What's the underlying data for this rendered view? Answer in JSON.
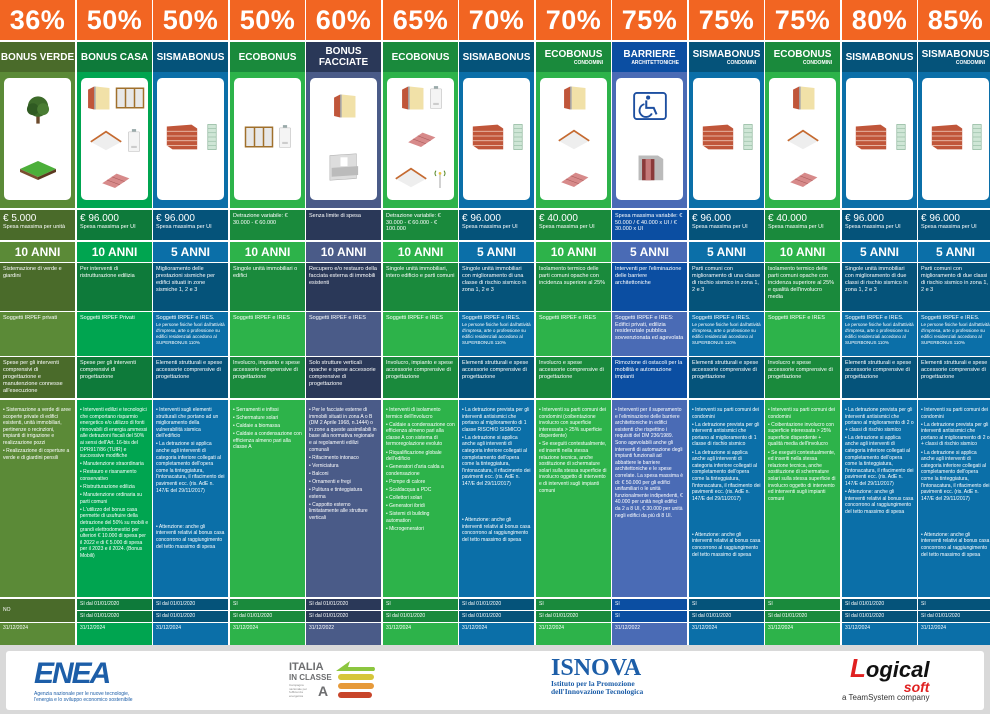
{
  "row_labels": {
    "cessione": "NO",
    "scadenza_label": ""
  },
  "columns": [
    {
      "percent": "36%",
      "title": "BONUS VERDE",
      "subtitle": "",
      "icons": [
        "tree-icon",
        "lawn-icon"
      ],
      "spesa_big": "€ 5.000",
      "spesa_small": "Spesa massima per unità",
      "anni": "10 ANNI",
      "desc": "Sistemazione di verde e giardini",
      "soggetti": "Soggetti IRPEF privati",
      "soggetti_note": "",
      "spese": "Spese per gli interventi comprensivi di progettazione e manutenzione connesse all'esecuzione",
      "interventi": [
        "Sistemazione a verde di aree scoperte private di edifici esistenti, unità immobiliari, pertinenze o recinzioni, impianti di irrigazione e realizzazione pozzi",
        "Realizzazione di coperture a verde e di giardini pensili"
      ],
      "interventi_extra": "",
      "cessione": "NO",
      "sconto": "",
      "scadenza": "31/12/2024"
    },
    {
      "percent": "50%",
      "title": "BONUS CASA",
      "subtitle": "",
      "icons": [
        "insulated-wall-icon",
        "window-icon",
        "roof-insulation-icon",
        "boiler-icon",
        "roof-icon"
      ],
      "spesa_big": "€ 96.000",
      "spesa_small": "Spesa massima per UI",
      "anni": "10 ANNI",
      "desc": "Per interventi di ristrutturazione edilizia",
      "soggetti": "Soggetti IRPEF Privati",
      "soggetti_note": "",
      "spese": "Spese per gli interventi comprensivi di progettazione",
      "interventi": [
        "Interventi edilizi e tecnologici che comportano risparmio energetico e/o utilizzo di fonti rinnovabili di energia ammessi alle detrazioni fiscali del 50% ai sensi dell'Art. 16-bis del DPR917/86 (TUIR) e successive modifiche",
        "Manutenzione straordinaria",
        "Restauro e risanamento conservativo",
        "Ristrutturazione edilizia",
        "Manutenzione ordinaria su parti comuni",
        "L'utilizzo del bonus casa permette di usufruire della detrazione del 50% su mobili e grandi elettrodomestici per ulteriori € 10.000 di spesa per il 2022 e di € 5.000 di spesa per il 2023 e il 2024. (Bonus Mobili)"
      ],
      "interventi_extra": "",
      "cessione": "SI dal 01/01/2020",
      "sconto": "SI dal 01/01/2020",
      "scadenza": "31/12/2024"
    },
    {
      "percent": "50%",
      "title": "SISMABONUS",
      "subtitle": "",
      "icons": [
        "brick-wall-icon",
        "rebar-column-icon"
      ],
      "spesa_big": "€ 96.000",
      "spesa_small": "Spesa massima per UI",
      "anni": "5 ANNI",
      "desc": "Miglioramento delle prestazioni sismiche per edifici situati in zone sismiche 1, 2 e 3",
      "soggetti": "Soggetti IRPEF e IRES.",
      "soggetti_note": "Le persone fisiche fuori dall'attività d'impresa, arte o professione su edifici residenziali accedono al SUPERBONUS 110%",
      "spese": "Elementi strutturali e spese accessorie comprensive di progettazione",
      "interventi": [
        "Interventi sugli elementi strutturali che portano ad un miglioramento della vulnerabilità sismica dell'edificio",
        "La detrazione si applica anche agli interventi di categoria inferiore collegati al completamento dell'opera come la tinteggiatura, l'intonacatura, il rifacimento dei pavimenti ecc. (ris. AdE n. 147/E del 29/11/2017)"
      ],
      "interventi_extra": "Attenzione: anche gli interventi relativi al bonus casa concorrono al raggiungimento del tetto massimo di spesa",
      "cessione": "SI dal 01/01/2020",
      "sconto": "SI dal 01/01/2020",
      "scadenza": "31/12/2024"
    },
    {
      "percent": "50%",
      "title": "ECOBONUS",
      "subtitle": "",
      "icons": [
        "window-icon",
        "boiler-icon"
      ],
      "spesa_big": "",
      "spesa_small": "Detrazione variabile: € 30.000 - € 60.000",
      "anni": "10 ANNI",
      "desc": "Singole unità immobiliari o edifici",
      "soggetti": "Soggetti IRPEF e IRES",
      "soggetti_note": "",
      "spese": "Involucro, impianto e spese accessorie comprensive di progettazione",
      "interventi": [
        "Serramenti e infissi",
        "Schermature solari",
        "Caldaie a biomassa",
        "Caldaie a condensazione con efficienza almeno pari alla classe A"
      ],
      "interventi_extra": "",
      "cessione": "SI",
      "sconto": "SI dal 01/01/2020",
      "scadenza": "31/12/2024"
    },
    {
      "percent": "60%",
      "title": "BONUS FACCIATE",
      "subtitle": "",
      "icons": [
        "insulated-wall-icon",
        "balcony-icon"
      ],
      "spesa_big": "",
      "spesa_small": "Senza limite di spesa",
      "anni": "10 ANNI",
      "desc": "Recupero e/o restauro della facciata esterna di immobili esistenti",
      "soggetti": "Soggetti IRPEF e IRES",
      "soggetti_note": "",
      "spese": "Solo strutture verticali opache e spese accessorie comprensive di progettazione",
      "interventi": [
        "Per le facciate esterne di immobili situati in zona A o B (DM 2 Aprile 1968, n.1444) o in zone a queste assimilabili in base alla normativa regionale e ai regolamenti edilizi comunali",
        "Rifacimento intonaco",
        "Verniciatura",
        "Balconi",
        "Ornamenti e fregi",
        "Pulitura e tinteggiatura esterna",
        "Cappotto esterno limitatamente alle strutture verticali"
      ],
      "interventi_extra": "",
      "cessione": "SI dal 01/01/2020",
      "sconto": "SI dal 01/01/2020",
      "scadenza": "31/12/2022"
    },
    {
      "percent": "65%",
      "title": "ECOBONUS",
      "subtitle": "",
      "icons": [
        "insulated-wall-icon",
        "boiler-icon",
        "roof-icon",
        "roof-insulation-icon",
        "antenna-icon"
      ],
      "spesa_big": "",
      "spesa_small": "Detrazione variabile: € 30.000 - € 60.000 - € 100.000",
      "anni": "10 ANNI",
      "desc": "Singole unità immobiliari, intero edificio e parti comuni",
      "soggetti": "Soggetti IRPEF e IRES",
      "soggetti_note": "",
      "spese": "Involucro, impianto e spese accessorie comprensive di progettazione",
      "interventi": [
        "Interventi di isolamento termico dell'involucro",
        "Caldaie a condensazione con efficienza almeno pari alla classe A con sistema di termoregolazione evoluto",
        "Riqualificazione globale dell'edificio",
        "Generatori d'aria calda a condensazione",
        "Pompe di calore",
        "Scaldacqua a PDC",
        "Collettori solari",
        "Generatori ibridi",
        "Sistemi di building automation",
        "Microgeneratori"
      ],
      "interventi_extra": "",
      "cessione": "SI",
      "sconto": "SI dal 01/01/2020",
      "scadenza": "31/12/2024"
    },
    {
      "percent": "70%",
      "title": "SISMABONUS",
      "subtitle": "",
      "icons": [
        "brick-wall-icon",
        "rebar-column-icon"
      ],
      "spesa_big": "€ 96.000",
      "spesa_small": "Spesa massima per UI",
      "anni": "5 ANNI",
      "desc": "Singole unità immobiliari con miglioramento di una classe di rischio sismico in zona 1, 2 e 3",
      "soggetti": "Soggetti IRPEF e IRES.",
      "soggetti_note": "Le persone fisiche fuori dall'attività d'impresa, arte o professione su edifici residenziali accedono al SUPERBONUS 110%",
      "spese": "Elementi strutturali e spese accessorie comprensive di progettazione",
      "interventi": [
        "La detrazione prevista per gli interventi antisismici che portano al miglioramento di 1 classe RISCHIO SISMICO",
        "La detrazione si applica anche agli interventi di categoria inferiore collegati al completamento dell'opera come la tinteggiatura, l'intonacatura, il rifacimento dei pavimenti ecc. (ris. AdE n. 147/E del 29/11/2017)"
      ],
      "interventi_extra": "Attenzione: anche gli interventi relativi al bonus casa concorrono al raggiungimento del tetto massimo di spesa",
      "cessione": "SI dal 01/01/2020",
      "sconto": "SI dal 01/01/2020",
      "scadenza": "31/12/2024"
    },
    {
      "percent": "70%",
      "title": "ECOBONUS",
      "subtitle": "CONDOMINI",
      "icons": [
        "insulated-wall-icon",
        "roof-insulation-icon",
        "roof-icon"
      ],
      "spesa_big": "€ 40.000",
      "spesa_small": "Spesa massima per UI",
      "anni": "10 ANNI",
      "desc": "Isolamento termico delle parti comuni opache con incidenza superiore al 25%",
      "soggetti": "Soggetti IRPEF e IRES",
      "soggetti_note": "",
      "spese": "Involucro e spese accessorie comprensive di progettazione",
      "interventi": [
        "Interventi su parti comuni dei condomini (coibentazione involucro con superficie interessata > 25% superficie disperdente)",
        "Se eseguiti contestualmente, ed inseriti nella stessa relazione tecnica, anche sostituzione di schermature solari sulla stessa superficie di involucro oggetto di intervento e di interventi sugli impianti comuni"
      ],
      "interventi_extra": "",
      "cessione": "SI",
      "sconto": "SI dal 01/01/2020",
      "scadenza": "31/12/2024"
    },
    {
      "percent": "75%",
      "title": "BARRIERE",
      "subtitle": "ARCHITETTONICHE",
      "icons": [
        "wheelchair-icon",
        "elevator-icon"
      ],
      "spesa_big": "",
      "spesa_small": "Spesa massima variabile: € 50.000 / € 40.000 x UI / € 30.000 x UI",
      "anni": "5 ANNI",
      "desc": "Interventi per l'eliminazione delle barriere architettoniche",
      "soggetti": "Soggetti IRPEF e IRES: Edifici privati, edilizia residenziale pubblica sovvenzionata ed agevolata",
      "soggetti_note": "",
      "spese": "Rimozione di ostacoli per la mobilità e automazione impianti",
      "interventi": [
        "Interventi per il superamento e l'eliminazione delle barriere architettoniche in edifici esistenti che rispettino i requisiti del DM 236/1989. Sono agevolabili anche gli interventi di automazione degli impianti funzionali ad abbattere le barriere architettoniche e le spese correlate. La spesa massima è di: € 50.000 per gli edifici unifamiliari o le unità funzionalmente indipendenti, € 40.000 per unità negli edifici da 2 a 8 UI, € 30.000 per unità negli edifici da più di 8 UI."
      ],
      "interventi_extra": "",
      "cessione": "SI",
      "sconto": "SI",
      "scadenza": "31/12/2022"
    },
    {
      "percent": "75%",
      "title": "SISMABONUS",
      "subtitle": "CONDOMINI",
      "icons": [
        "brick-wall-icon",
        "rebar-column-icon"
      ],
      "spesa_big": "€ 96.000",
      "spesa_small": "Spesa massima per UI",
      "anni": "5 ANNI",
      "desc": "Parti comuni con miglioramento di una classe di rischio sismico in zona 1, 2 e 3",
      "soggetti": "Soggetti IRPEF e IRES.",
      "soggetti_note": "Le persone fisiche fuori dall'attività d'impresa, arte o professione su edifici residenziali accedono al SUPERBONUS 110%",
      "spese": "Elementi strutturali e spese accessorie comprensive di progettazione",
      "interventi": [
        "Interventi su parti comuni dei condomini",
        "La detrazione prevista per gli interventi antisismici che portano al miglioramento di 1 classe di rischio sismico",
        "La detrazione si applica anche agli interventi di categoria inferiore collegati al completamento dell'opera come la tinteggiatura, l'intonacatura, il rifacimento dei pavimenti ecc. (ris. AdE n. 147/E del 29/11/2017)"
      ],
      "interventi_extra": "Attenzione: anche gli interventi relativi al bonus casa concorrono al raggiungimento del tetto massimo di spesa",
      "cessione": "SI",
      "sconto": "SI dal 01/01/2020",
      "scadenza": "31/12/2024"
    },
    {
      "percent": "75%",
      "title": "ECOBONUS",
      "subtitle": "CONDOMINI",
      "icons": [
        "insulated-wall-icon",
        "roof-insulation-icon",
        "roof-icon"
      ],
      "spesa_big": "€ 40.000",
      "spesa_small": "Spesa massima per UI",
      "anni": "10 ANNI",
      "desc": "Isolamento termico delle parti comuni opache con incidenza superiore al 25% e qualità dell'involucro media",
      "soggetti": "Soggetti IRPEF e IRES",
      "soggetti_note": "",
      "spese": "Involucro e spese accessorie comprensive di progettazione",
      "interventi": [
        "Interventi su parti comuni dei condomini",
        "Coibentazione involucro con superficie interessata > 25% superficie disperdente + qualità media dell'involucro",
        "Se eseguiti contestualmente, ed inseriti nella stessa relazione tecnica, anche sostituzione di schermature solari sulla stessa superficie di involucro oggetto di intervento ed interventi sugli impianti comuni"
      ],
      "interventi_extra": "",
      "cessione": "SI",
      "sconto": "SI dal 01/01/2020",
      "scadenza": "31/12/2024"
    },
    {
      "percent": "80%",
      "title": "SISMABONUS",
      "subtitle": "",
      "icons": [
        "brick-wall-icon",
        "rebar-column-icon"
      ],
      "spesa_big": "€ 96.000",
      "spesa_small": "Spesa massima per UI",
      "anni": "5 ANNI",
      "desc": "Singole unità immobiliari con miglioramento di due classi di rischio sismico in zona 1, 2 e 3",
      "soggetti": "Soggetti IRPEF e IRES.",
      "soggetti_note": "Le persone fisiche fuori dall'attività d'impresa, arte o professione su edifici residenziali accedono al SUPERBONUS 110%",
      "spese": "Elementi strutturali e spese accessorie comprensive di progettazione",
      "interventi": [
        "La detrazione prevista per gli interventi antisismici che portano al miglioramento di 2 o + classi di rischio sismico",
        "La detrazione si applica anche agli interventi di categoria inferiore collegati al completamento dell'opera come la tinteggiatura, l'intonacatura, il rifacimento dei pavimenti ecc. (ris. AdE n. 147/E del 29/11/2017)",
        "Attenzione: anche gli interventi relativi al bonus casa concorrono al raggiungimento del tetto massimo di spesa"
      ],
      "interventi_extra": "",
      "cessione": "SI dal 01/01/2020",
      "sconto": "SI dal 01/01/2020",
      "scadenza": "31/12/2024"
    },
    {
      "percent": "85%",
      "title": "SISMABONUS",
      "subtitle": "CONDOMINI",
      "icons": [
        "brick-wall-icon",
        "rebar-column-icon"
      ],
      "spesa_big": "€ 96.000",
      "spesa_small": "Spesa massima per UI",
      "anni": "5 ANNI",
      "desc": "Parti comuni con miglioramento di due classi di rischio sismico in zona 1, 2 e 3",
      "soggetti": "Soggetti IRPEF e IRES.",
      "soggetti_note": "Le persone fisiche fuori dall'attività d'impresa, arte o professione su edifici residenziali accedono al SUPERBONUS 110%",
      "spese": "Elementi strutturali e spese accessorie comprensive di progettazione",
      "interventi": [
        "Interventi su parti comuni dei condomini",
        "La detrazione prevista per gli interventi antisismici che portano al miglioramento di 2 o + classi di rischio sismico",
        "La detrazione si applica anche agli interventi di categoria inferiore collegati al completamento dell'opera come la tinteggiatura, l'intonacatura, il rifacimento dei pavimenti ecc. (ris. AdE n. 147/E del 29/11/2017)"
      ],
      "interventi_extra": "Attenzione: anche gli interventi relativi al bonus casa concorrono al raggiungimento del tetto massimo di spesa",
      "cessione": "SI",
      "sconto": "SI dal 01/01/2020",
      "scadenza": "31/12/2024"
    }
  ],
  "palette": {
    "header_orange": "#f26522",
    "olive": [
      "#4a6b2a",
      "#5b8a37"
    ],
    "green_dark": [
      "#0e7a3a",
      "#00a550"
    ],
    "blue": [
      "#05537a",
      "#0b6fa8"
    ],
    "green_light": [
      "#1a8a3c",
      "#2db34a"
    ],
    "navy": [
      "#2a3858",
      "#4a5b88"
    ],
    "royal": [
      "#0b4ea2",
      "#4a6bb5"
    ]
  },
  "footer": {
    "enea": {
      "name": "ENEA",
      "tagline": "Agenzia nazionale per le nuove tecnologie, l'energia e lo sviluppo economico sostenibile"
    },
    "italia": {
      "line1": "ITALIA",
      "line2": "IN CLASSE",
      "letter": "A",
      "small": "Campagna nazionale per l'efficienza energetica"
    },
    "isnova": {
      "name": "ISNOVA",
      "line1": "Istituto per la Promozione",
      "line2": "dell'Innovazione Tecnologica"
    },
    "logical": {
      "name1": "ogical",
      "name2": "soft",
      "tagline": "a TeamSystem company"
    }
  }
}
